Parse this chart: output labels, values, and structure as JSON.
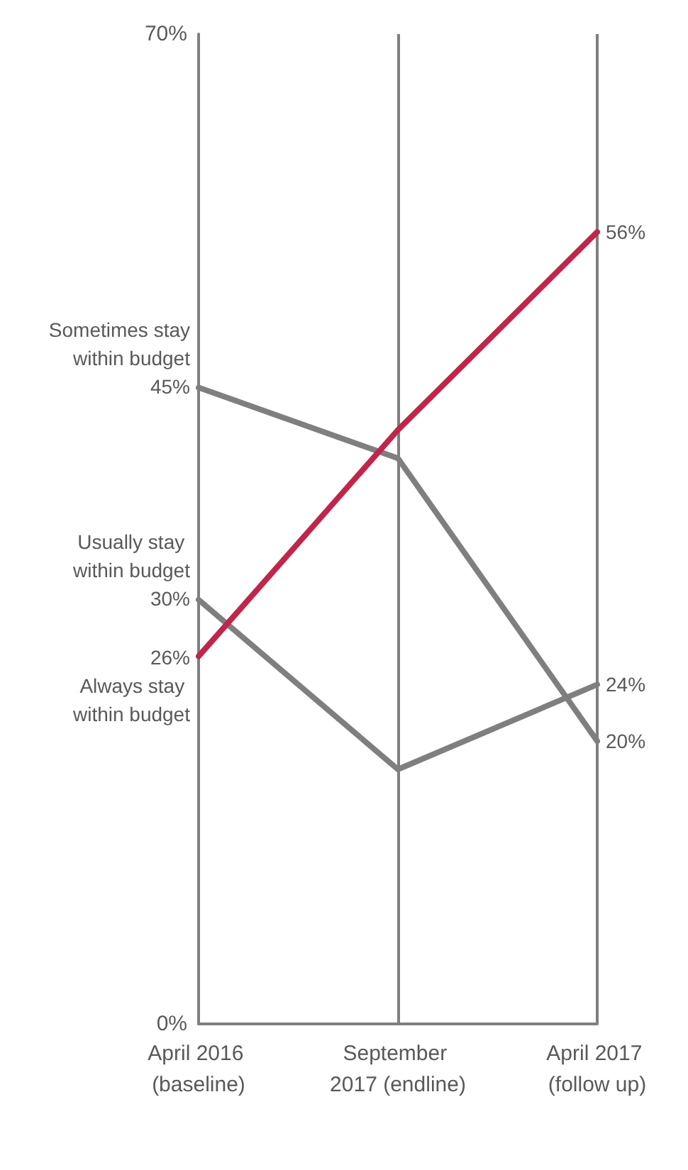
{
  "chart_data": {
    "type": "line",
    "categories": [
      "April 2016 (baseline)",
      "September 2017 (endline)",
      "April 2017 (follow up)"
    ],
    "series": [
      {
        "name": "Sometimes stay within budget",
        "color": "#7f7f7f",
        "values": [
          45,
          40,
          20
        ],
        "value_labels": [
          "45%",
          null,
          "20%"
        ]
      },
      {
        "name": "Usually stay within budget",
        "color": "#7f7f7f",
        "values": [
          30,
          18,
          24
        ],
        "value_labels": [
          "30%",
          null,
          "24%"
        ]
      },
      {
        "name": "Always stay within budget",
        "color": "#c0264a",
        "values": [
          26,
          42,
          56
        ],
        "value_labels": [
          "26%",
          null,
          "56%"
        ]
      }
    ],
    "ylim": [
      0,
      70
    ],
    "yticks": [
      {
        "value": 0,
        "label": "0%"
      },
      {
        "value": 70,
        "label": "70%"
      }
    ],
    "grid": "x",
    "legend": false,
    "marker": "none",
    "line_style": "solid"
  }
}
